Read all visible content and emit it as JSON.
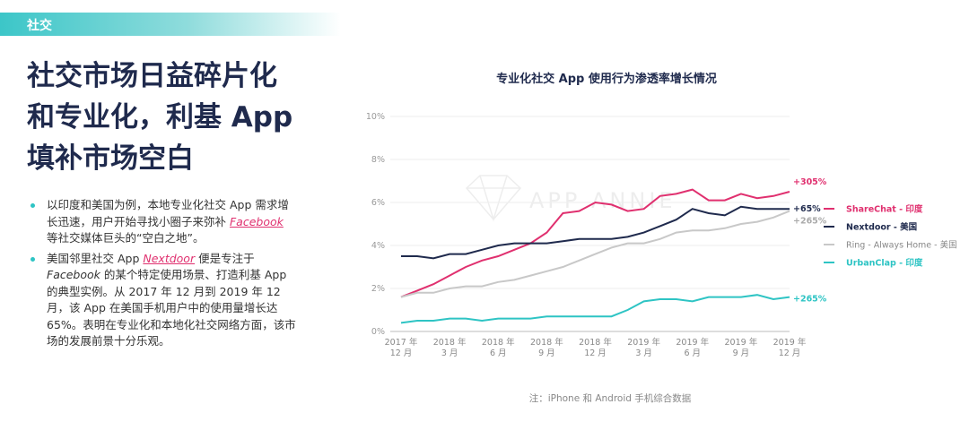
{
  "tag": "社交",
  "headline": [
    "社交市场日益碎片化",
    "和专业化，利基 App",
    "填补市场空白"
  ],
  "bullets": [
    [
      {
        "text": "以印度和美国为例，本地专业化社交 App 需求增长迅速，用户开始寻找小圈子来弥补 "
      },
      {
        "text": "Facebook",
        "style": "link"
      },
      {
        "text": " 等社交媒体巨头的“空白之地”。"
      }
    ],
    [
      {
        "text": "美国邻里社交 App "
      },
      {
        "text": "Nextdoor",
        "style": "link"
      },
      {
        "text": " 便是专注于 "
      },
      {
        "text": "Facebook",
        "style": "italic"
      },
      {
        "text": " 的某个特定使用场景、打造利基 App 的典型实例。从 2017 年 12 月到 2019 年 12 月，该 App 在美国手机用户中的使用量增长达 65%。表明在专业化和本地化社交网络方面，该市场的发展前景十分乐观。"
      }
    ]
  ],
  "chart_data": {
    "type": "line",
    "title": "专业化社交 App 使用行为渗透率增长情况",
    "watermark": "APP ANNIE",
    "note": "注：iPhone 和 Android 手机综合数据",
    "categories": [
      "2017 年 12 月",
      null,
      null,
      "2018 年 3 月",
      null,
      null,
      "2018 年 6 月",
      null,
      null,
      "2018 年 9 月",
      null,
      null,
      "2018 年 12 月",
      null,
      null,
      "2019 年 3 月",
      null,
      null,
      "2019 年 6 月",
      null,
      null,
      "2019 年 9 月",
      null,
      null,
      "2019 年 12 月"
    ],
    "ylim": [
      0,
      10
    ],
    "yticks": [
      {
        "value": 0,
        "label": "0%"
      },
      {
        "value": 2,
        "label": "2%"
      },
      {
        "value": 4,
        "label": "4%"
      },
      {
        "value": 6,
        "label": "6%"
      },
      {
        "value": 8,
        "label": "8%"
      },
      {
        "value": 10,
        "label": "10%"
      }
    ],
    "grid": true,
    "legend": "right",
    "series": [
      {
        "name": "ShareChat - 印度",
        "color": "#e0306f",
        "end_label": "+305%",
        "values": [
          1.6,
          1.9,
          2.2,
          2.6,
          3.0,
          3.3,
          3.5,
          3.8,
          4.1,
          4.6,
          5.5,
          5.6,
          6.0,
          5.9,
          5.6,
          5.7,
          6.3,
          6.4,
          6.6,
          6.1,
          6.1,
          6.4,
          6.2,
          6.3,
          6.5
        ]
      },
      {
        "name": "Nextdoor - 美国",
        "color": "#1f2a4d",
        "end_label": "+65%",
        "values": [
          3.5,
          3.5,
          3.4,
          3.6,
          3.6,
          3.8,
          4.0,
          4.1,
          4.1,
          4.1,
          4.2,
          4.3,
          4.3,
          4.3,
          4.4,
          4.6,
          4.9,
          5.2,
          5.7,
          5.5,
          5.4,
          5.8,
          5.7,
          5.7,
          5.7
        ]
      },
      {
        "name": "Ring - Always Home - 美国",
        "color": "#c8c8c8",
        "end_label": "+265%",
        "values": [
          1.6,
          1.8,
          1.8,
          2.0,
          2.1,
          2.1,
          2.3,
          2.4,
          2.6,
          2.8,
          3.0,
          3.3,
          3.6,
          3.9,
          4.1,
          4.1,
          4.3,
          4.6,
          4.7,
          4.7,
          4.8,
          5.0,
          5.1,
          5.3,
          5.6
        ]
      },
      {
        "name": "UrbanClap - 印度",
        "color": "#2ec4c4",
        "end_label": "+265%",
        "values": [
          0.4,
          0.5,
          0.5,
          0.6,
          0.6,
          0.5,
          0.6,
          0.6,
          0.6,
          0.7,
          0.7,
          0.7,
          0.7,
          0.7,
          1.0,
          1.4,
          1.5,
          1.5,
          1.4,
          1.6,
          1.6,
          1.6,
          1.7,
          1.5,
          1.6
        ]
      }
    ]
  }
}
